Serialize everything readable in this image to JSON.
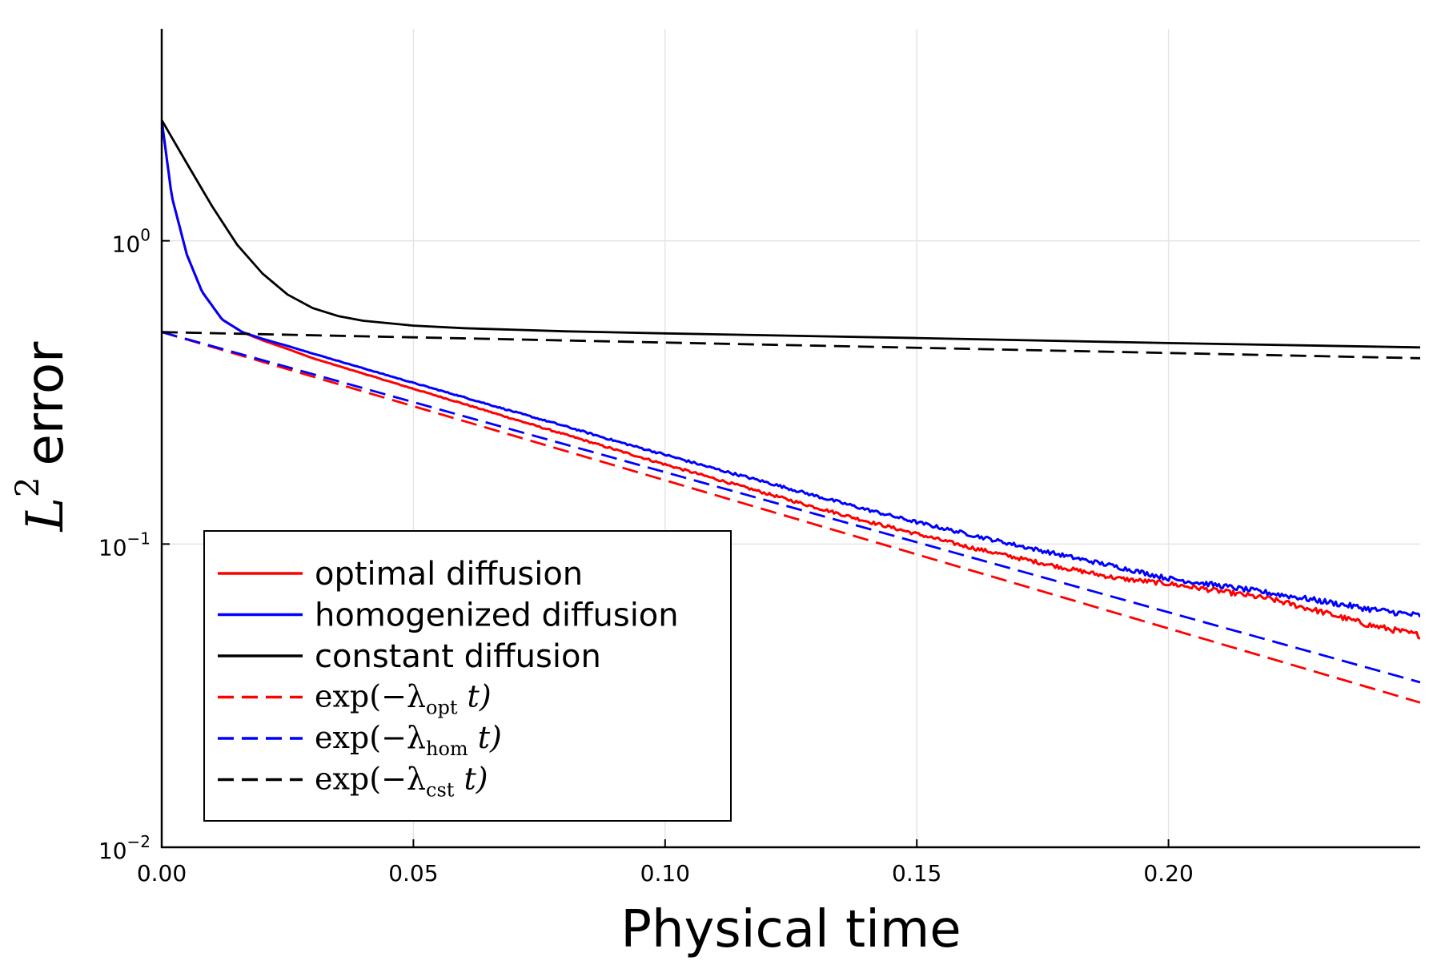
{
  "chart_data": {
    "type": "line",
    "title": "",
    "xlabel": "Physical time",
    "ylabel": {
      "base": "L",
      "superscript": "2",
      "text": "error"
    },
    "yscale": "log",
    "xlim": [
      0.0,
      0.25
    ],
    "ylim": [
      0.01,
      5.0
    ],
    "grid": true,
    "legend_position": "bottom-left",
    "x_ticks": [
      {
        "value": 0.0,
        "label": "0.00"
      },
      {
        "value": 0.05,
        "label": "0.05"
      },
      {
        "value": 0.1,
        "label": "0.10"
      },
      {
        "value": 0.15,
        "label": "0.15"
      },
      {
        "value": 0.2,
        "label": "0.20"
      }
    ],
    "y_ticks": [
      {
        "value": 1.0,
        "base": "10",
        "exponent": "0"
      },
      {
        "value": 0.1,
        "base": "10",
        "exponent": "−1"
      },
      {
        "value": 0.01,
        "base": "10",
        "exponent": "−2"
      }
    ],
    "series": [
      {
        "name": "optimal diffusion",
        "legend": {
          "text": "optimal diffusion"
        },
        "color": "#ff0000",
        "dash": "solid",
        "noise": 0.02,
        "x": [
          0.0,
          0.002,
          0.005,
          0.008,
          0.012,
          0.016,
          0.02,
          0.025,
          0.03,
          0.04,
          0.05,
          0.06,
          0.07,
          0.08,
          0.09,
          0.1,
          0.11,
          0.12,
          0.13,
          0.14,
          0.15,
          0.16,
          0.17,
          0.18,
          0.19,
          0.2,
          0.21,
          0.22,
          0.23,
          0.24,
          0.25
        ],
        "y": [
          2.5,
          1.4,
          0.9,
          0.68,
          0.55,
          0.5,
          0.47,
          0.44,
          0.41,
          0.365,
          0.325,
          0.29,
          0.258,
          0.23,
          0.205,
          0.183,
          0.164,
          0.147,
          0.132,
          0.119,
          0.108,
          0.098,
          0.09,
          0.083,
          0.077,
          0.074,
          0.07,
          0.066,
          0.06,
          0.054,
          0.05
        ]
      },
      {
        "name": "homogenized diffusion",
        "legend": {
          "text": "homogenized diffusion"
        },
        "color": "#0000ff",
        "dash": "solid",
        "noise": 0.02,
        "x": [
          0.0,
          0.002,
          0.005,
          0.008,
          0.012,
          0.016,
          0.02,
          0.025,
          0.03,
          0.04,
          0.05,
          0.06,
          0.07,
          0.08,
          0.09,
          0.1,
          0.11,
          0.12,
          0.13,
          0.14,
          0.15,
          0.16,
          0.17,
          0.18,
          0.19,
          0.2,
          0.21,
          0.22,
          0.23,
          0.24,
          0.25
        ],
        "y": [
          2.5,
          1.4,
          0.9,
          0.68,
          0.55,
          0.5,
          0.475,
          0.45,
          0.425,
          0.38,
          0.34,
          0.305,
          0.273,
          0.245,
          0.219,
          0.197,
          0.177,
          0.16,
          0.144,
          0.13,
          0.118,
          0.108,
          0.099,
          0.091,
          0.084,
          0.077,
          0.073,
          0.069,
          0.065,
          0.061,
          0.058
        ]
      },
      {
        "name": "constant diffusion",
        "legend": {
          "text": "constant diffusion"
        },
        "color": "#000000",
        "dash": "solid",
        "noise": 0,
        "x": [
          0.0,
          0.005,
          0.01,
          0.015,
          0.02,
          0.025,
          0.03,
          0.035,
          0.04,
          0.05,
          0.06,
          0.08,
          0.1,
          0.15,
          0.2,
          0.25
        ],
        "y": [
          2.5,
          1.8,
          1.3,
          0.97,
          0.78,
          0.665,
          0.6,
          0.565,
          0.545,
          0.525,
          0.515,
          0.503,
          0.495,
          0.478,
          0.46,
          0.445
        ]
      },
      {
        "name": "exp(−λopt t)",
        "legend": {
          "pre": "exp(−λ",
          "sub": "opt",
          "post": " t)"
        },
        "color": "#ff0000",
        "dash": "dashed",
        "noise": 0,
        "x": [
          0.0,
          0.25
        ],
        "y": [
          0.5,
          0.03
        ]
      },
      {
        "name": "exp(−λhom t)",
        "legend": {
          "pre": "exp(−λ",
          "sub": "hom",
          "post": " t)"
        },
        "color": "#0000ff",
        "dash": "dashed",
        "noise": 0,
        "x": [
          0.0,
          0.25
        ],
        "y": [
          0.5,
          0.035
        ]
      },
      {
        "name": "exp(−λcst t)",
        "legend": {
          "pre": "exp(−λ",
          "sub": "cst",
          "post": " t)"
        },
        "color": "#000000",
        "dash": "dashed",
        "noise": 0,
        "x": [
          0.0,
          0.25
        ],
        "y": [
          0.5,
          0.41
        ]
      }
    ]
  }
}
